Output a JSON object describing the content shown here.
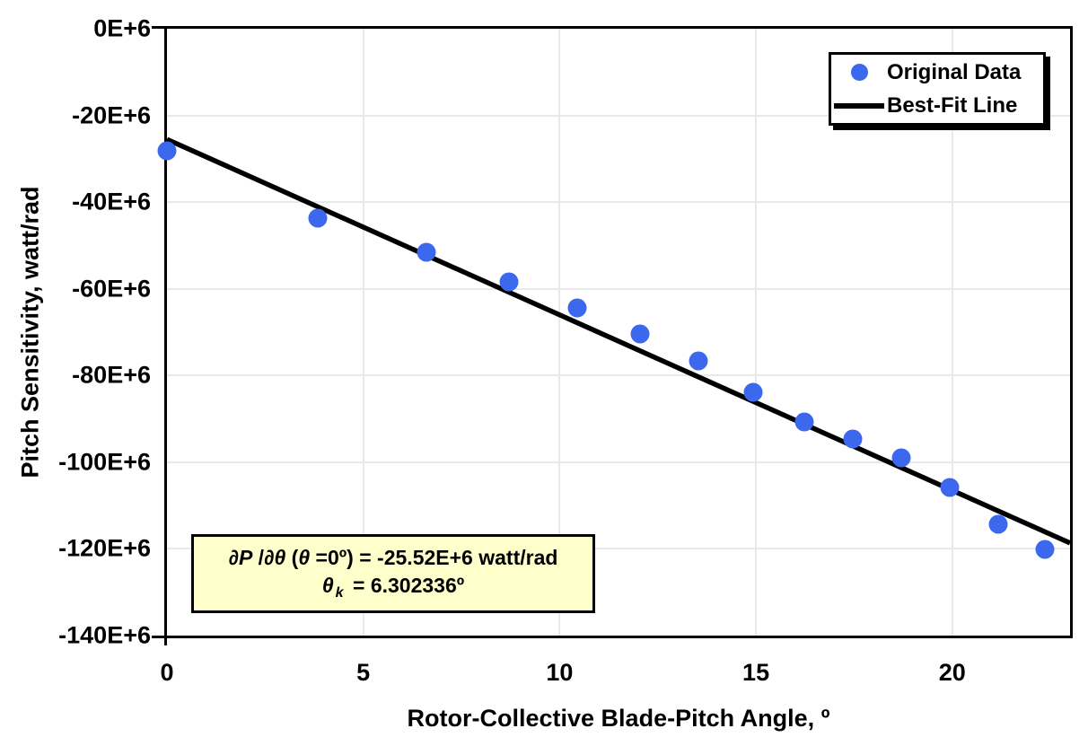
{
  "chart_data": {
    "type": "scatter",
    "title": "",
    "xlabel": "Rotor-Collective Blade-Pitch Angle, º",
    "ylabel": "Pitch Sensitivity, watt/rad",
    "xlim": [
      0,
      23
    ],
    "ylim": [
      -140,
      0
    ],
    "y_unit_note": "y values expressed in millions (E+6) of watt/rad",
    "grid": true,
    "gridline_color": "#e9e9e9",
    "x_ticks": [
      {
        "value": 0,
        "label": "0"
      },
      {
        "value": 5,
        "label": "5"
      },
      {
        "value": 10,
        "label": "10"
      },
      {
        "value": 15,
        "label": "15"
      },
      {
        "value": 20,
        "label": "20"
      }
    ],
    "y_ticks": [
      {
        "value": 0,
        "label": "0E+6"
      },
      {
        "value": -20,
        "label": "-20E+6"
      },
      {
        "value": -40,
        "label": "-40E+6"
      },
      {
        "value": -60,
        "label": "-60E+6"
      },
      {
        "value": -80,
        "label": "-80E+6"
      },
      {
        "value": -100,
        "label": "-100E+6"
      },
      {
        "value": -120,
        "label": "-120E+6"
      },
      {
        "value": -140,
        "label": "-140E+6"
      }
    ],
    "series": [
      {
        "name": "Original Data",
        "type": "scatter",
        "marker": "circle",
        "marker_color": "#3b68ec",
        "x": [
          0.0,
          3.83,
          6.6,
          8.7,
          10.45,
          12.06,
          13.54,
          14.92,
          16.23,
          17.47,
          18.7,
          19.94,
          21.18,
          22.35
        ],
        "y": [
          -28.24,
          -43.73,
          -51.66,
          -58.44,
          -64.44,
          -70.46,
          -76.53,
          -83.94,
          -90.67,
          -94.71,
          -99.04,
          -105.9,
          -114.3,
          -120.2
        ]
      },
      {
        "name": "Best-Fit Line",
        "type": "line",
        "color": "#000000",
        "x": [
          0,
          23
        ],
        "y": [
          -25.52,
          -118.65
        ]
      }
    ],
    "legend": {
      "position": "top-right"
    },
    "annotation": {
      "background": "#ffffcc",
      "line1_text": "∂P /∂θ (θ =0º) = -25.52E+6 watt/rad",
      "line2_text": "θ k = 6.302336º",
      "line1_segments": [
        {
          "text": "∂P",
          "style": "italic"
        },
        {
          "text": " /",
          "style": "normal"
        },
        {
          "text": "∂θ",
          "style": "italic"
        },
        {
          "text": " (",
          "style": "normal"
        },
        {
          "text": "θ",
          "style": "italic"
        },
        {
          "text": " =0º) = -25.52E+6 watt/rad",
          "style": "normal"
        }
      ],
      "line2_segments": [
        {
          "text": "θ",
          "style": "italic"
        },
        {
          "text": "k",
          "style": "sub"
        },
        {
          "text": " = 6.302336º",
          "style": "normal"
        }
      ]
    }
  }
}
